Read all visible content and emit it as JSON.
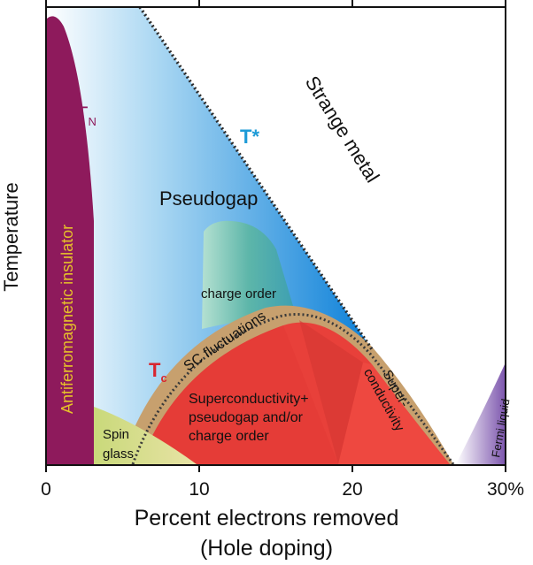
{
  "chart_data": {
    "type": "diagram",
    "title": "",
    "xlabel": "Percent electrons removed",
    "xlabel_sub": "(Hole doping)",
    "ylabel": "Temperature",
    "x_ticks": [
      "0",
      "10",
      "20",
      "30%"
    ],
    "x_tick_values": [
      0,
      10,
      20,
      30
    ],
    "xlim": [
      0,
      30
    ],
    "regions": [
      {
        "key": "af",
        "label": "Antiferromagnetic insulator",
        "color": "#8e1a5c"
      },
      {
        "key": "pg",
        "label": "Pseudogap",
        "color": "#1f8fdc"
      },
      {
        "key": "strange",
        "label": "Strange metal",
        "color": "#ffffff"
      },
      {
        "key": "co",
        "label": "charge order",
        "color": "#6ab7a8"
      },
      {
        "key": "scf",
        "label": "SC fluctuations",
        "color": "#c9a371"
      },
      {
        "key": "sc_pg",
        "label": "Superconductivity+\npseudogap and/or\ncharge order",
        "color": "#e8403a"
      },
      {
        "key": "sc",
        "label": "Super-\nconductivity",
        "color": "#ef4a42"
      },
      {
        "key": "spin",
        "label": "Spin\nglass",
        "color": "#d4de8f"
      },
      {
        "key": "fermi",
        "label": "Fermi liquid",
        "color": "#8a6ab4"
      }
    ],
    "boundaries": [
      {
        "key": "tn",
        "label": "T",
        "subscript": "N",
        "color": "#8e1a5c"
      },
      {
        "key": "tstar",
        "label": "T*",
        "subscript": "",
        "color": "#1e9bd7"
      },
      {
        "key": "tc",
        "label": "T",
        "subscript": "c",
        "color": "#d8262f"
      }
    ]
  }
}
